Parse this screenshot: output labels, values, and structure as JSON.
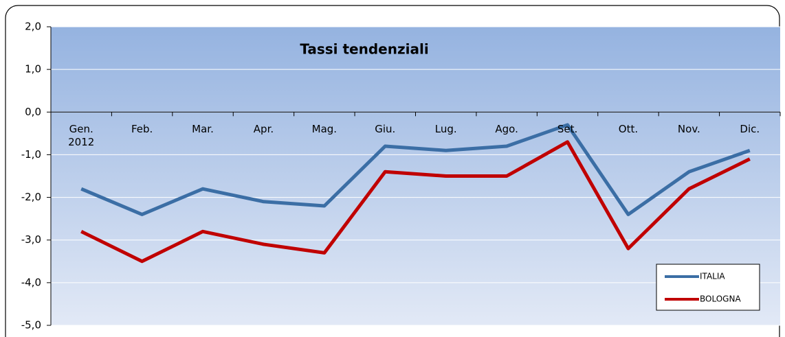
{
  "chart_data": {
    "type": "line",
    "title": "Tassi tendenziali",
    "categories": [
      "Gen.\n2012",
      "Feb.",
      "Mar.",
      "Apr.",
      "Mag.",
      "Giu.",
      "Lug.",
      "Ago.",
      "Set.",
      "Ott.",
      "Nov.",
      "Dic."
    ],
    "series": [
      {
        "name": "ITALIA",
        "color": "#3b6ea5",
        "values": [
          -1.8,
          -2.4,
          -1.8,
          -2.1,
          -2.2,
          -0.8,
          -0.9,
          -0.8,
          -0.3,
          -2.4,
          -1.4,
          -0.9
        ]
      },
      {
        "name": "BOLOGNA",
        "color": "#c00000",
        "values": [
          -2.8,
          -3.5,
          -2.8,
          -3.1,
          -3.3,
          -1.4,
          -1.5,
          -1.5,
          -0.7,
          -3.2,
          -1.8,
          -1.1
        ]
      }
    ],
    "ylim": [
      -5,
      2
    ],
    "yticks": [
      {
        "value": -5,
        "label": "-5,0"
      },
      {
        "value": -4,
        "label": "-4,0"
      },
      {
        "value": -3,
        "label": "-3,0"
      },
      {
        "value": -2,
        "label": "-2,0"
      },
      {
        "value": -1,
        "label": "-1,0"
      },
      {
        "value": 0,
        "label": "0,0"
      },
      {
        "value": 1,
        "label": "1,0"
      },
      {
        "value": 2,
        "label": "2,0"
      }
    ],
    "grid": true,
    "legend": "lower right"
  }
}
